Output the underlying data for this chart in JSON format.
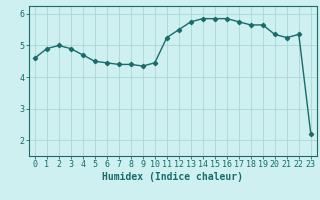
{
  "x": [
    0,
    1,
    2,
    3,
    4,
    5,
    6,
    7,
    8,
    9,
    10,
    11,
    12,
    13,
    14,
    15,
    16,
    17,
    18,
    19,
    20,
    21,
    22,
    23
  ],
  "y": [
    4.6,
    4.9,
    5.0,
    4.9,
    4.7,
    4.5,
    4.45,
    4.4,
    4.4,
    4.35,
    4.45,
    5.25,
    5.5,
    5.75,
    5.85,
    5.85,
    5.85,
    5.75,
    5.65,
    5.65,
    5.35,
    5.25,
    5.35,
    2.2
  ],
  "xlabel": "Humidex (Indice chaleur)",
  "ylim": [
    1.5,
    6.25
  ],
  "xlim": [
    -0.5,
    23.5
  ],
  "yticks": [
    2,
    3,
    4,
    5,
    6
  ],
  "xticks": [
    0,
    1,
    2,
    3,
    4,
    5,
    6,
    7,
    8,
    9,
    10,
    11,
    12,
    13,
    14,
    15,
    16,
    17,
    18,
    19,
    20,
    21,
    22,
    23
  ],
  "line_color": "#1a6b6b",
  "bg_color": "#cef0f0",
  "grid_color": "#aad8d8",
  "marker": "D",
  "marker_size": 2.2,
  "line_width": 1.0,
  "tick_fontsize": 6.0,
  "xlabel_fontsize": 7.0
}
